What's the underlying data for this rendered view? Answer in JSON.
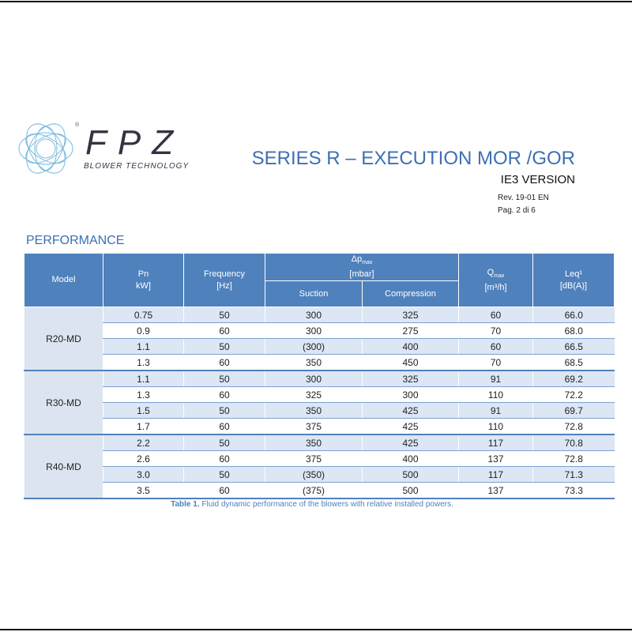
{
  "logo": {
    "name": "FPZ",
    "tagline": "BLOWER TECHNOLOGY",
    "registered": "®"
  },
  "header": {
    "title": "SERIES R – EXECUTION MOR /GOR",
    "version": "IE3 VERSION",
    "revision": "Rev. 19-01  EN",
    "page": "Pag. 2 di 6"
  },
  "section": "PERFORMANCE",
  "table": {
    "headers": {
      "model": "Model",
      "pn": "Pn",
      "pn_unit": "kW]",
      "frequency": "Frequency",
      "frequency_unit": "[Hz]",
      "dp": "Δp",
      "dp_sub": "max",
      "dp_unit": "[mbar]",
      "suction": "Suction",
      "compression": "Compression",
      "q": "Q",
      "q_sub": "max",
      "q_unit": "[m³/h]",
      "leq": "Leq¹",
      "leq_unit": "[dB(A)]"
    },
    "groups": [
      {
        "model": "R20-MD",
        "rows": [
          [
            "0.75",
            "50",
            "300",
            "325",
            "60",
            "66.0"
          ],
          [
            "0.9",
            "60",
            "300",
            "275",
            "70",
            "68.0"
          ],
          [
            "1.1",
            "50",
            "(300)",
            "400",
            "60",
            "66.5"
          ],
          [
            "1.3",
            "60",
            "350",
            "450",
            "70",
            "68.5"
          ]
        ]
      },
      {
        "model": "R30-MD",
        "rows": [
          [
            "1.1",
            "50",
            "300",
            "325",
            "91",
            "69.2"
          ],
          [
            "1.3",
            "60",
            "325",
            "300",
            "110",
            "72.2"
          ],
          [
            "1.5",
            "50",
            "350",
            "425",
            "91",
            "69.7"
          ],
          [
            "1.7",
            "60",
            "375",
            "425",
            "110",
            "72.8"
          ]
        ]
      },
      {
        "model": "R40-MD",
        "rows": [
          [
            "2.2",
            "50",
            "350",
            "425",
            "117",
            "70.8"
          ],
          [
            "2.6",
            "60",
            "375",
            "400",
            "137",
            "72.8"
          ],
          [
            "3.0",
            "50",
            "(350)",
            "500",
            "117",
            "71.3"
          ],
          [
            "3.5",
            "60",
            "(375)",
            "500",
            "137",
            "73.3"
          ]
        ]
      }
    ]
  },
  "caption": {
    "label": "Table 1.",
    "text": " Fluid dynamic performance of the blowers with relative installed powers."
  }
}
